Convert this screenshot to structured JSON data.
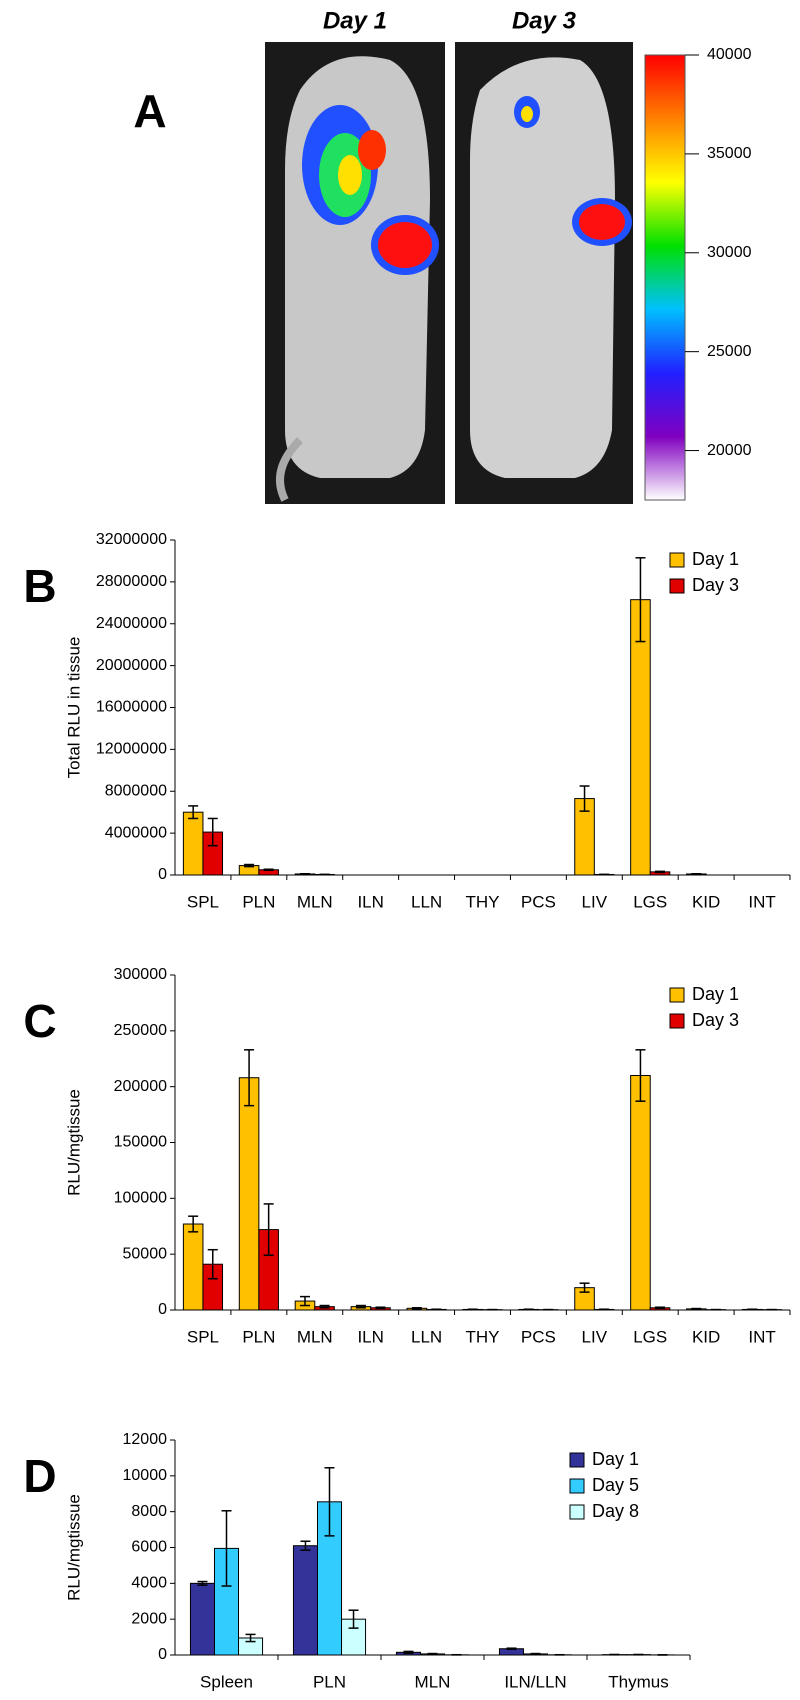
{
  "panel_labels": [
    "A",
    "B",
    "C",
    "D"
  ],
  "chart_data": [
    {
      "type": "colorbar",
      "image_titles": [
        "Day 1",
        "Day 3"
      ],
      "colors": [
        "#ffffff",
        "#8000c0",
        "#2020ff",
        "#00c0ff",
        "#00e000",
        "#ffff00",
        "#ff8000",
        "#ff0000"
      ],
      "ylim": [
        17500,
        40000
      ],
      "yticks": [
        20000,
        25000,
        30000,
        35000,
        40000
      ]
    },
    {
      "type": "bar",
      "ylabel": "Total RLU in tissue",
      "categories": [
        "SPL",
        "PLN",
        "MLN",
        "ILN",
        "LLN",
        "THY",
        "PCS",
        "LIV",
        "LGS",
        "KID",
        "INT"
      ],
      "series": [
        {
          "name": "Day 1",
          "color": "#ffc000",
          "values": [
            6000000,
            900000,
            100000,
            0,
            0,
            0,
            0,
            7300000,
            26300000,
            100000,
            0
          ],
          "errors": [
            600000,
            100000,
            20000,
            0,
            0,
            0,
            0,
            1200000,
            4000000,
            20000,
            0
          ]
        },
        {
          "name": "Day 3",
          "color": "#e00000",
          "values": [
            4100000,
            500000,
            50000,
            0,
            0,
            0,
            0,
            50000,
            300000,
            0,
            0
          ],
          "errors": [
            1300000,
            50000,
            10000,
            0,
            0,
            0,
            0,
            10000,
            50000,
            0,
            0
          ]
        }
      ],
      "ylim": [
        0,
        32000000
      ],
      "yticks": [
        0,
        4000000,
        8000000,
        12000000,
        16000000,
        20000000,
        24000000,
        28000000,
        32000000
      ],
      "legend": "upper right"
    },
    {
      "type": "bar",
      "ylabel": "RLU/mgtissue",
      "categories": [
        "SPL",
        "PLN",
        "MLN",
        "ILN",
        "LLN",
        "THY",
        "PCS",
        "LIV",
        "LGS",
        "KID",
        "INT"
      ],
      "series": [
        {
          "name": "Day 1",
          "color": "#ffc000",
          "values": [
            77000,
            208000,
            8000,
            3000,
            1500,
            500,
            500,
            20000,
            210000,
            1000,
            500
          ],
          "errors": [
            7000,
            25000,
            4000,
            1000,
            500,
            200,
            200,
            4000,
            23000,
            300,
            200
          ]
        },
        {
          "name": "Day 3",
          "color": "#e00000",
          "values": [
            41000,
            72000,
            3000,
            2000,
            500,
            300,
            300,
            500,
            2000,
            300,
            300
          ],
          "errors": [
            13000,
            23000,
            1000,
            500,
            200,
            100,
            100,
            200,
            500,
            100,
            100
          ]
        }
      ],
      "ylim": [
        0,
        300000
      ],
      "yticks": [
        0,
        50000,
        100000,
        150000,
        200000,
        250000,
        300000
      ],
      "legend": "upper right"
    },
    {
      "type": "bar",
      "ylabel": "RLU/mgtissue",
      "categories": [
        "Spleen",
        "PLN",
        "MLN",
        "ILN/LLN",
        "Thymus"
      ],
      "series": [
        {
          "name": "Day 1",
          "color": "#333399",
          "values": [
            4000,
            6100,
            150,
            350,
            20
          ],
          "errors": [
            100,
            250,
            50,
            30,
            10
          ]
        },
        {
          "name": "Day 5",
          "color": "#33ccff",
          "values": [
            5950,
            8550,
            60,
            60,
            20
          ],
          "errors": [
            2100,
            1900,
            20,
            20,
            10
          ]
        },
        {
          "name": "Day 8",
          "color": "#ccffff",
          "values": [
            950,
            2000,
            10,
            10,
            5
          ],
          "errors": [
            200,
            500,
            5,
            5,
            2
          ]
        }
      ],
      "ylim": [
        0,
        12000
      ],
      "yticks": [
        0,
        2000,
        4000,
        6000,
        8000,
        10000,
        12000
      ],
      "legend": "upper right"
    }
  ]
}
